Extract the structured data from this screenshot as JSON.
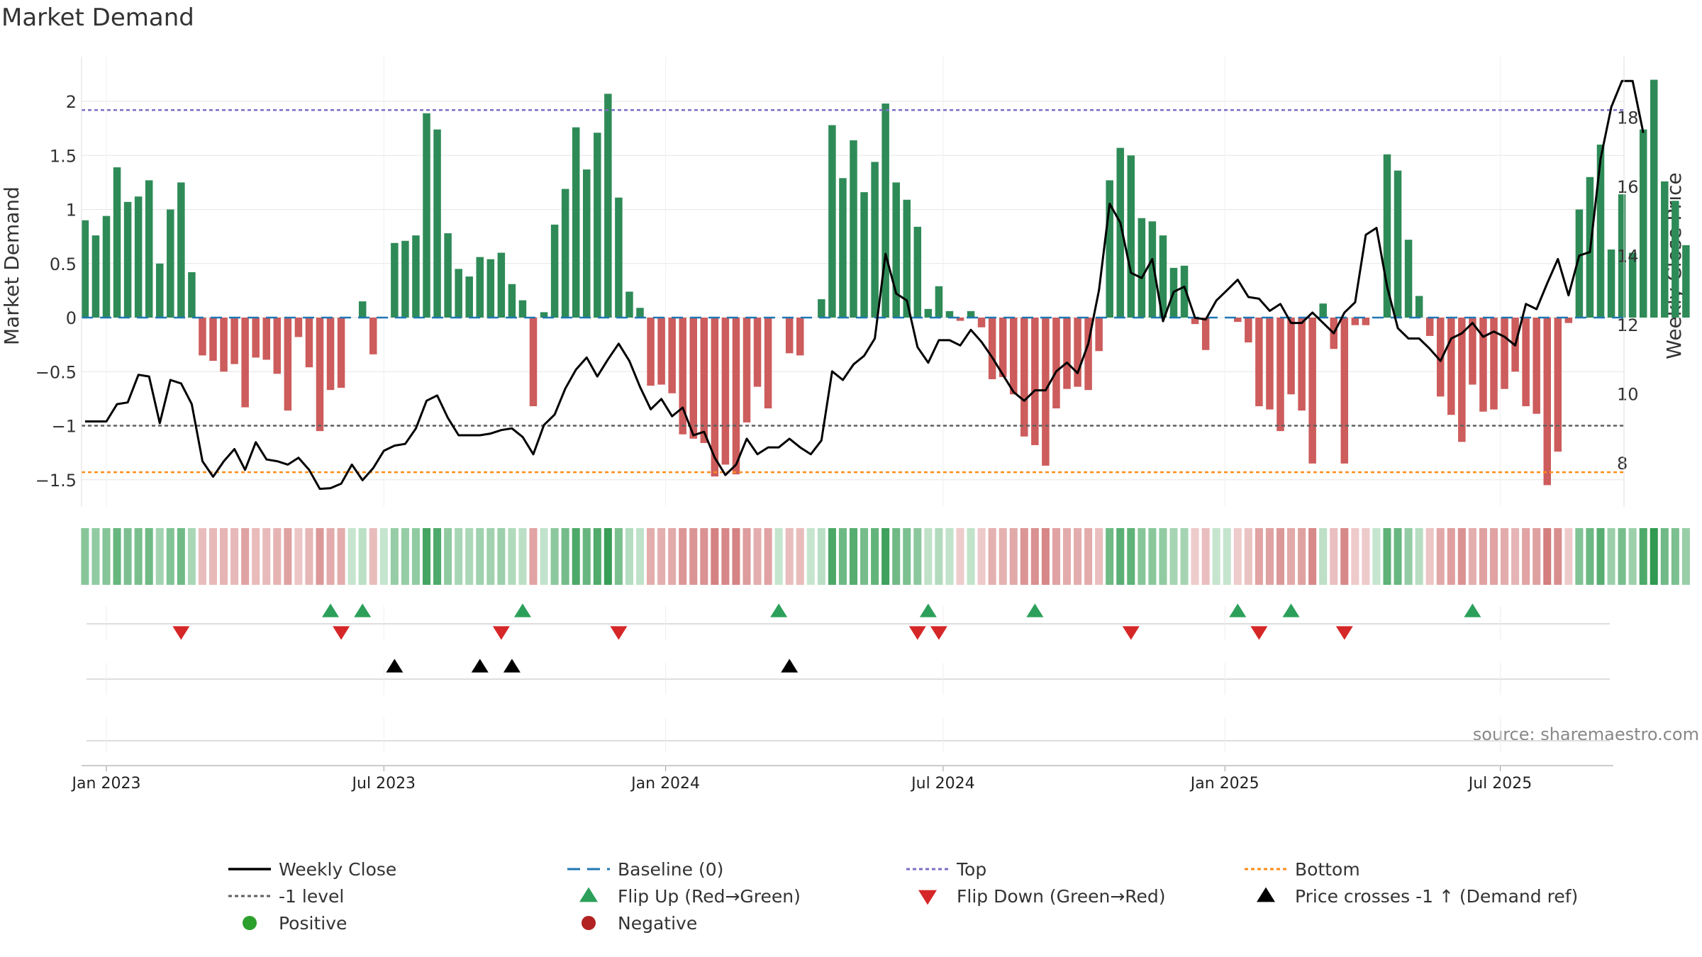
{
  "chart_data": {
    "type": "bar",
    "title": "Market Demand",
    "ylabel": "Market Demand",
    "y2label": "Weekly Close Price",
    "source": "source: sharemaestro.com",
    "ylim": [
      -1.75,
      2.4
    ],
    "y2lim": [
      7,
      19.7
    ],
    "yticks": [
      -1.5,
      -1,
      -0.5,
      0,
      0.5,
      1,
      1.5,
      2
    ],
    "ytick_labels": [
      "−1.5",
      "−1",
      "−0.5",
      "0",
      "0.5",
      "1",
      "1.5",
      "2"
    ],
    "y2ticks": [
      8,
      10,
      12,
      14,
      16,
      18
    ],
    "y2tick_labels": [
      "8",
      "10",
      "12",
      "14",
      "16",
      "18"
    ],
    "xticks": [
      {
        "week": 0,
        "label": "Jan 2023"
      },
      {
        "week": 26,
        "label": "Jul 2023"
      },
      {
        "week": 52.4,
        "label": "Jan 2024"
      },
      {
        "week": 78.4,
        "label": "Jul 2024"
      },
      {
        "week": 104.8,
        "label": "Jan 2025"
      },
      {
        "week": 130.6,
        "label": "Jul 2025"
      }
    ],
    "first_week_offset": -2,
    "levels": {
      "baseline": 0,
      "top": 1.92,
      "minus_one": -1,
      "bottom": -1.43
    },
    "demand": [
      0.9,
      0.76,
      0.94,
      1.39,
      1.07,
      1.12,
      1.27,
      0.5,
      1.0,
      1.25,
      0.42,
      -0.35,
      -0.4,
      -0.5,
      -0.43,
      -0.83,
      -0.37,
      -0.39,
      -0.52,
      -0.86,
      -0.18,
      -0.46,
      -1.05,
      -0.67,
      -0.65,
      0.0,
      0.15,
      -0.34,
      0.0,
      0.69,
      0.71,
      0.76,
      1.89,
      1.74,
      0.78,
      0.45,
      0.38,
      0.56,
      0.54,
      0.6,
      0.31,
      0.16,
      -0.82,
      0.05,
      0.86,
      1.19,
      1.76,
      1.37,
      1.71,
      2.07,
      1.11,
      0.24,
      0.09,
      -0.63,
      -0.62,
      -0.7,
      -1.08,
      -1.12,
      -1.16,
      -1.47,
      -1.36,
      -1.45,
      -0.97,
      -0.64,
      -0.84,
      0.0,
      -0.33,
      -0.35,
      0.0,
      0.17,
      1.78,
      1.29,
      1.64,
      1.16,
      1.44,
      1.98,
      1.25,
      1.09,
      0.84,
      0.08,
      0.29,
      0.06,
      -0.03,
      0.06,
      -0.09,
      -0.57,
      -0.55,
      -0.71,
      -1.1,
      -1.18,
      -1.37,
      -0.84,
      -0.66,
      -0.64,
      -0.67,
      -0.31,
      1.27,
      1.57,
      1.5,
      0.92,
      0.89,
      0.76,
      0.46,
      0.48,
      -0.06,
      -0.3,
      0.0,
      0.0,
      -0.04,
      -0.23,
      -0.82,
      -0.85,
      -1.05,
      -0.71,
      -0.86,
      -1.35,
      0.13,
      -0.29,
      -1.35,
      -0.07,
      -0.07,
      0.0,
      1.51,
      1.36,
      0.72,
      0.2,
      -0.17,
      -0.73,
      -0.9,
      -1.15,
      -0.62,
      -0.87,
      -0.85,
      -0.66,
      -0.5,
      -0.82,
      -0.89,
      -1.55,
      -1.24,
      -0.05,
      1.0,
      1.3,
      1.6,
      0.63,
      1.14,
      0.6,
      1.74,
      2.2,
      1.26,
      1.08,
      0.67
    ],
    "close": [
      9.2,
      9.2,
      9.2,
      9.7,
      9.75,
      10.55,
      10.5,
      9.15,
      10.4,
      10.3,
      9.7,
      8.05,
      7.6,
      8.05,
      8.4,
      7.8,
      8.6,
      8.1,
      8.05,
      7.95,
      8.15,
      7.8,
      7.25,
      7.27,
      7.4,
      7.95,
      7.5,
      7.85,
      8.35,
      8.5,
      8.55,
      9.0,
      9.8,
      9.95,
      9.3,
      8.8,
      8.8,
      8.8,
      8.85,
      8.95,
      9.0,
      8.75,
      8.25,
      9.1,
      9.4,
      10.15,
      10.7,
      11.05,
      10.5,
      11.0,
      11.45,
      10.95,
      10.2,
      9.55,
      9.85,
      9.35,
      9.6,
      8.8,
      8.9,
      8.15,
      7.65,
      7.95,
      8.7,
      8.25,
      8.45,
      8.45,
      8.7,
      8.45,
      8.25,
      8.65,
      10.65,
      10.4,
      10.85,
      11.1,
      11.6,
      14.05,
      12.9,
      12.7,
      11.35,
      10.9,
      11.55,
      11.55,
      11.4,
      11.85,
      11.5,
      11.05,
      10.55,
      10.05,
      9.8,
      10.1,
      10.1,
      10.65,
      10.9,
      10.6,
      11.45,
      13.0,
      15.5,
      14.95,
      13.5,
      13.35,
      13.9,
      12.1,
      12.95,
      13.1,
      12.2,
      12.15,
      12.7,
      13.0,
      13.3,
      12.8,
      12.75,
      12.4,
      12.6,
      12.05,
      12.05,
      12.35,
      12.05,
      11.75,
      12.35,
      12.65,
      14.6,
      14.8,
      13.1,
      11.9,
      11.6,
      11.6,
      11.3,
      10.95,
      11.6,
      11.75,
      12.05,
      11.65,
      11.8,
      11.65,
      11.4,
      12.6,
      12.45,
      13.2,
      13.9,
      12.85,
      14.0,
      14.1,
      16.8,
      18.3,
      19.05,
      19.05,
      17.55
    ],
    "flip_up_weeks": [
      23,
      26,
      41,
      65,
      79,
      89,
      108,
      113,
      130
    ],
    "flip_down_weeks": [
      9,
      24,
      39,
      50,
      78,
      80,
      98,
      110,
      118
    ],
    "price_cross_weeks": [
      29,
      37,
      40,
      66
    ],
    "legend": [
      {
        "label": "Weekly Close",
        "marker": "line",
        "color": "#000000"
      },
      {
        "label": "Baseline (0)",
        "marker": "dash",
        "color": "#1f77b4"
      },
      {
        "label": "Top",
        "marker": "dot-line",
        "color": "#7b6fc4"
      },
      {
        "label": "Bottom",
        "marker": "dot-line",
        "color": "#ff8c1a"
      },
      {
        "label": "-1 level",
        "marker": "dot-line",
        "color": "#606060"
      },
      {
        "label": "Flip Up (Red→Green)",
        "marker": "triangle-up",
        "color": "#2ca05a"
      },
      {
        "label": "Flip Down (Green→Red)",
        "marker": "triangle-down",
        "color": "#d62728"
      },
      {
        "label": "Price crosses -1 ↑ (Demand ref)",
        "marker": "triangle-up",
        "color": "#000000"
      },
      {
        "label": "Positive",
        "marker": "circle",
        "color": "#2ca02c"
      },
      {
        "label": "Negative",
        "marker": "circle",
        "color": "#b22222"
      }
    ],
    "colors": {
      "positive": "#2e8b57",
      "negative": "#cd5c5c",
      "close": "#000000",
      "baseline": "#1f77b4",
      "top": "#7b6fc4",
      "bottom": "#ff8c1a",
      "minus_one": "#606060",
      "flip_up": "#2ca05a",
      "flip_down": "#d62728",
      "cross": "#000000"
    }
  }
}
